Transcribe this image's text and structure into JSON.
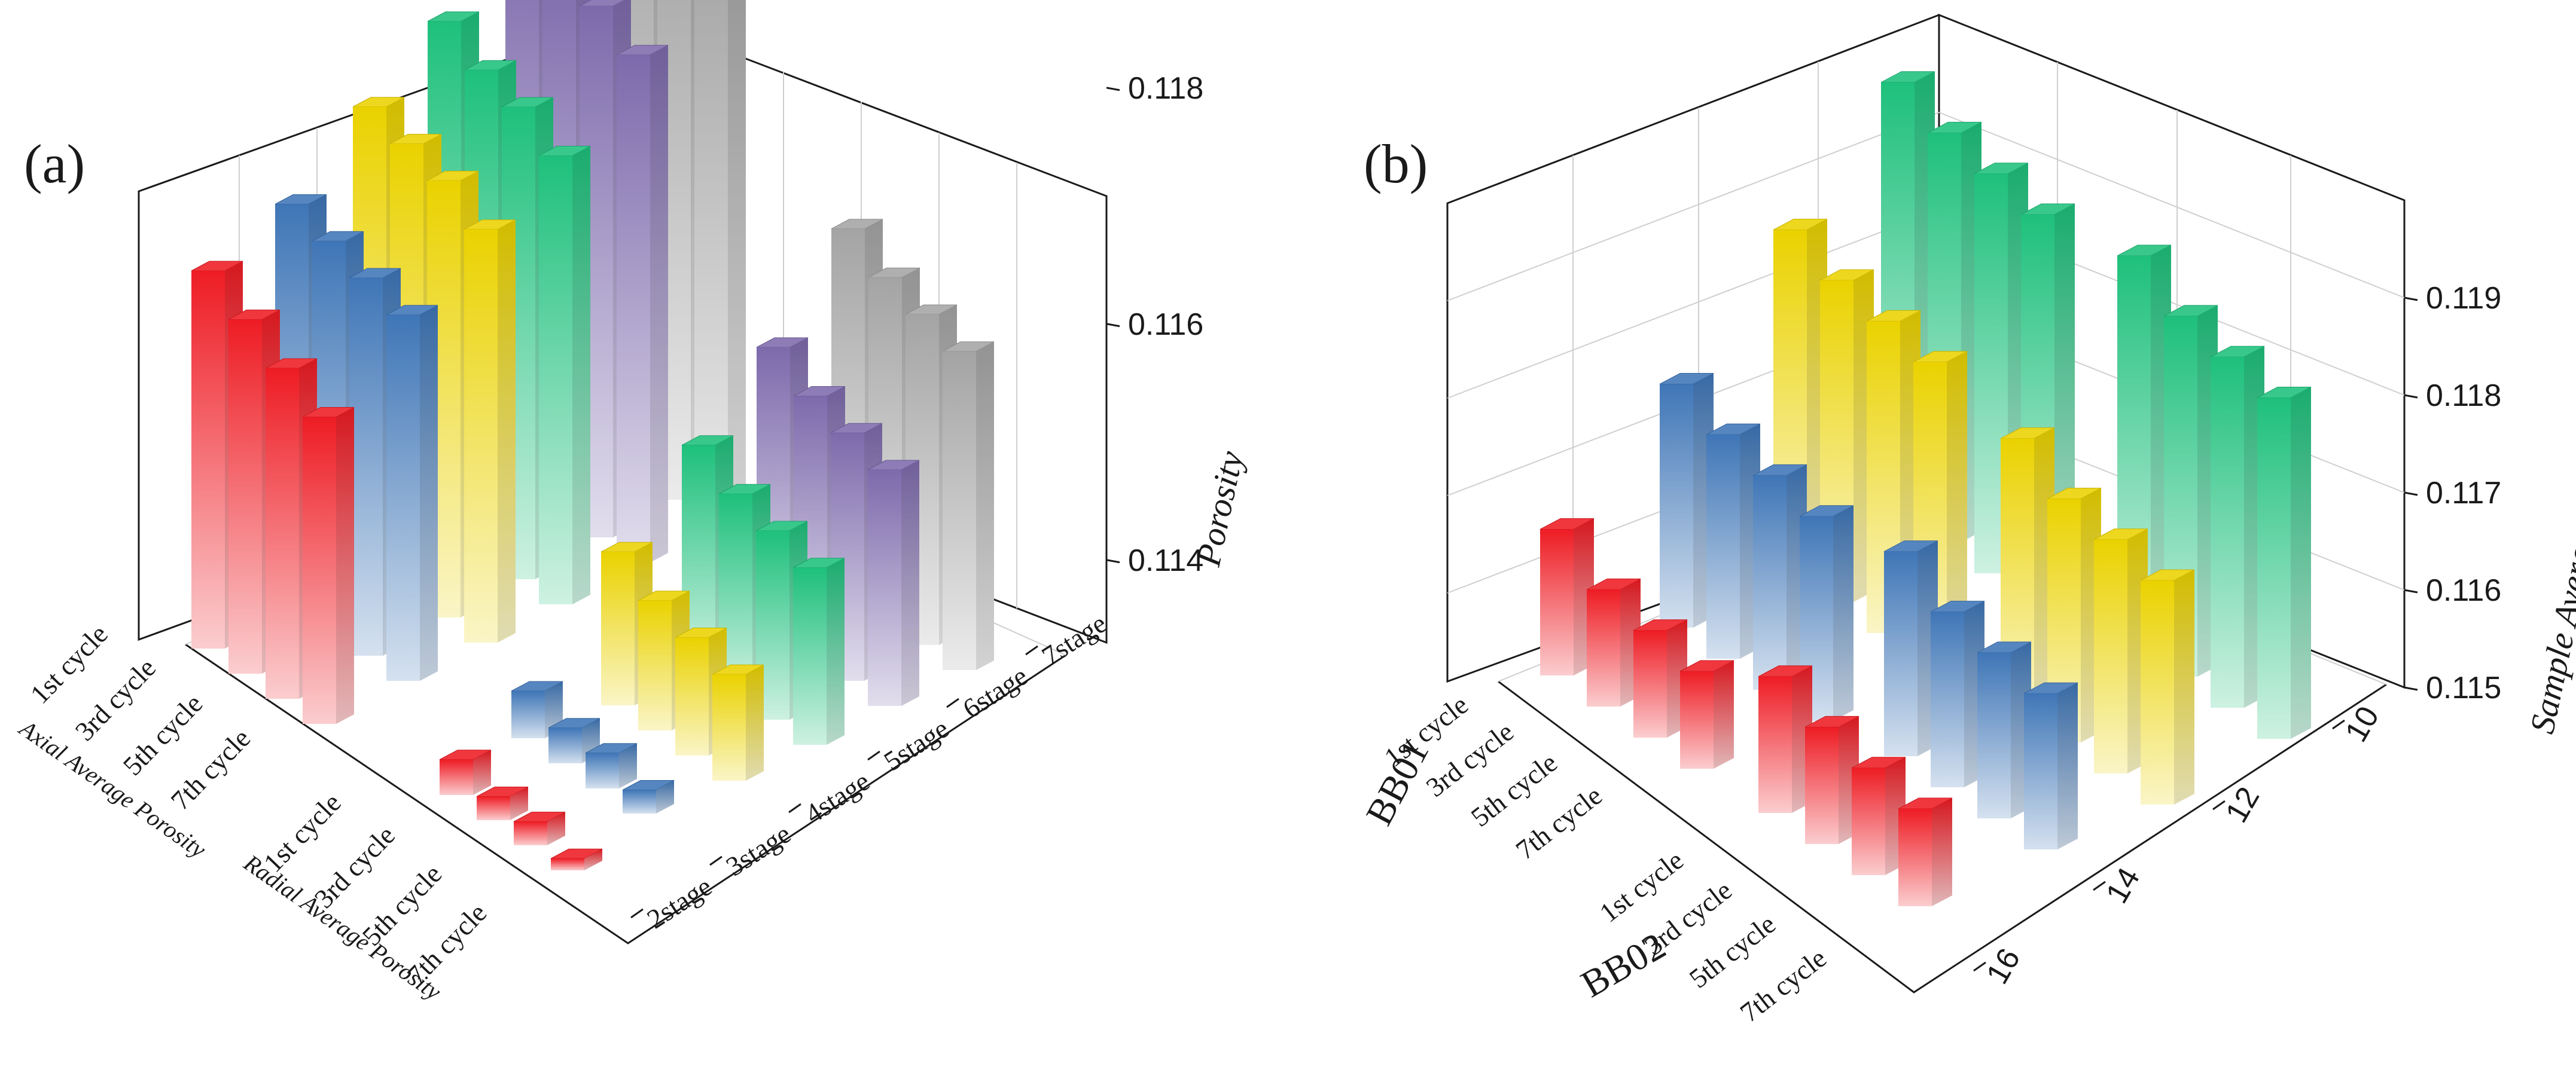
{
  "chart_data": [
    {
      "panel_label": "(a)",
      "type": "bar3d",
      "zlabel": "Porosity",
      "zlim": [
        0.1133,
        0.1185
      ],
      "zticks": [
        "0.114",
        "0.116",
        "0.118"
      ],
      "z_tick_values": [
        0.114,
        0.116,
        0.118
      ],
      "stage_labels": [
        "2stage",
        "3stage",
        "4stage",
        "5stage",
        "6stage",
        "7stage"
      ],
      "cycle_labels": [
        "1st cycle",
        "3rd cycle",
        "5th cycle",
        "7th cycle"
      ],
      "group_labels": [
        "Axial  Average Porosity",
        "Radial Average Porosity"
      ],
      "series": [
        {
          "group": "Axial  Average Porosity",
          "stage": "2stage",
          "color": "#ee1c24",
          "values": [
            0.1165,
            0.1163,
            0.1161,
            0.1159
          ]
        },
        {
          "group": "Axial  Average Porosity",
          "stage": "3stage",
          "color": "#3f76b7",
          "values": [
            0.1167,
            0.1166,
            0.1165,
            0.1164
          ]
        },
        {
          "group": "Axial  Average Porosity",
          "stage": "4stage",
          "color": "#ead200",
          "values": [
            0.1172,
            0.1171,
            0.117,
            0.1168
          ]
        },
        {
          "group": "Axial  Average Porosity",
          "stage": "5stage",
          "color": "#1ec07c",
          "values": [
            0.1176,
            0.1174,
            0.1173,
            0.1171
          ]
        },
        {
          "group": "Axial  Average Porosity",
          "stage": "6stage",
          "color": "#7d6aac",
          "values": [
            0.118,
            0.1179,
            0.1178,
            0.1176
          ]
        },
        {
          "group": "Axial  Average Porosity",
          "stage": "7stage",
          "color": "#a4a4a4",
          "values": [
            0.1185,
            0.1184,
            0.1183,
            0.1182
          ]
        },
        {
          "group": "Radial Average Porosity",
          "stage": "2stage",
          "color": "#ee1c24",
          "values": [
            0.1136,
            0.1135,
            0.1135,
            0.1134
          ]
        },
        {
          "group": "Radial Average Porosity",
          "stage": "3stage",
          "color": "#3f76b7",
          "values": [
            0.1137,
            0.1136,
            0.1136,
            0.1135
          ]
        },
        {
          "group": "Radial Average Porosity",
          "stage": "4stage",
          "color": "#ead200",
          "values": [
            0.1146,
            0.1144,
            0.1143,
            0.1142
          ]
        },
        {
          "group": "Radial Average Porosity",
          "stage": "5stage",
          "color": "#1ec07c",
          "values": [
            0.1152,
            0.115,
            0.1149,
            0.1148
          ]
        },
        {
          "group": "Radial Average Porosity",
          "stage": "6stage",
          "color": "#7d6aac",
          "values": [
            0.1157,
            0.1155,
            0.1154,
            0.1153
          ]
        },
        {
          "group": "Radial Average Porosity",
          "stage": "7stage",
          "color": "#a4a4a4",
          "values": [
            0.1164,
            0.1162,
            0.1161,
            0.116
          ]
        }
      ]
    },
    {
      "panel_label": "(b)",
      "type": "bar3d",
      "zlabel": "Sample Average Porosity",
      "zlim": [
        0.115,
        0.1194
      ],
      "zticks": [
        "0.115",
        "0.116",
        "0.117",
        "0.118",
        "0.119"
      ],
      "z_tick_values": [
        0.115,
        0.116,
        0.117,
        0.118,
        0.119
      ],
      "depth_labels": [
        "10",
        "12",
        "14",
        "16"
      ],
      "depth_values": [
        10,
        12,
        14,
        16
      ],
      "cycle_labels": [
        "1st cycle",
        "3rd cycle",
        "5th cycle",
        "7th cycle"
      ],
      "sample_labels": [
        "BB01",
        "BB02"
      ],
      "series": [
        {
          "sample": "BB01",
          "color": "#ee1c24",
          "values": [
            0.1165,
            0.1162,
            0.1161,
            0.116
          ]
        },
        {
          "sample": "BB01",
          "color": "#3f76b7",
          "values": [
            0.1175,
            0.1173,
            0.1172,
            0.1171
          ]
        },
        {
          "sample": "BB01",
          "color": "#ead200",
          "values": [
            0.1185,
            0.1183,
            0.1182,
            0.1181
          ]
        },
        {
          "sample": "BB01",
          "color": "#1ec07c",
          "values": [
            0.1194,
            0.1192,
            0.1191,
            0.119
          ]
        },
        {
          "sample": "BB02",
          "color": "#ee1c24",
          "values": [
            0.1164,
            0.1162,
            0.1161,
            0.116
          ]
        },
        {
          "sample": "BB02",
          "color": "#3f76b7",
          "values": [
            0.1171,
            0.1168,
            0.1167,
            0.1166
          ]
        },
        {
          "sample": "BB02",
          "color": "#ead200",
          "values": [
            0.1178,
            0.1175,
            0.1174,
            0.1173
          ]
        },
        {
          "sample": "BB02",
          "color": "#1ec07c",
          "values": [
            0.119,
            0.1187,
            0.1186,
            0.1185
          ]
        }
      ]
    }
  ]
}
